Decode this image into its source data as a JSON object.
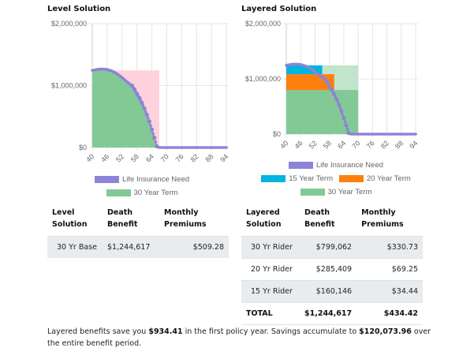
{
  "colors": {
    "need": "#8b84d7",
    "term15": "#00b4e0",
    "term20": "#ff7f0e",
    "term30": "#83c995",
    "term30_light": "#c2e4cb",
    "level_pink": "#ffd1dc",
    "grid": "#e5e5e5"
  },
  "chart_data": [
    {
      "type": "area",
      "title": "Level Solution",
      "xlabel": "Age",
      "ylabel": "",
      "x_ticks": [
        "40",
        "46",
        "52",
        "58",
        "64",
        "70",
        "76",
        "82",
        "88",
        "94"
      ],
      "y_ticks": [
        "$0",
        "$1,000,000",
        "$2,000,000"
      ],
      "xlim": [
        40,
        94
      ],
      "ylim": [
        0,
        2000000
      ],
      "grid": true,
      "legend": [
        "Life Insurance Need",
        "30 Year Term"
      ],
      "legend_position": "bottom",
      "series": [
        {
          "name": "Life Insurance Need",
          "kind": "line-points",
          "x": [
            40,
            42,
            44,
            46,
            48,
            50,
            52,
            54,
            56,
            57,
            58,
            59,
            60,
            61,
            62,
            63,
            64,
            65,
            66,
            67,
            70,
            94
          ],
          "values": [
            1244617,
            1262000,
            1268000,
            1260000,
            1235000,
            1190000,
            1130000,
            1060000,
            1000000,
            940000,
            870000,
            800000,
            720000,
            630000,
            530000,
            420000,
            290000,
            160000,
            20000,
            0,
            0,
            0
          ]
        },
        {
          "name": "30 Year Term",
          "kind": "level-band",
          "x_start": 40,
          "x_end": 67,
          "value": 1244617
        }
      ]
    },
    {
      "type": "area",
      "title": "Layered Solution",
      "xlabel": "Age",
      "ylabel": "",
      "x_ticks": [
        "40",
        "46",
        "52",
        "58",
        "64",
        "70",
        "76",
        "82",
        "88",
        "94"
      ],
      "y_ticks": [
        "$0",
        "$1,000,000",
        "$2,000,000"
      ],
      "xlim": [
        40,
        94
      ],
      "ylim": [
        0,
        2000000
      ],
      "grid": true,
      "legend": [
        "Life Insurance Need",
        "15 Year Term",
        "20 Year Term",
        "30 Year Term"
      ],
      "legend_position": "bottom",
      "series": [
        {
          "name": "Life Insurance Need",
          "kind": "line-points",
          "x": [
            40,
            42,
            44,
            46,
            48,
            50,
            52,
            54,
            56,
            57,
            58,
            59,
            60,
            61,
            62,
            63,
            64,
            65,
            66,
            67,
            70,
            94
          ],
          "values": [
            1244617,
            1262000,
            1268000,
            1260000,
            1235000,
            1190000,
            1130000,
            1060000,
            1000000,
            940000,
            870000,
            800000,
            720000,
            630000,
            530000,
            420000,
            290000,
            160000,
            20000,
            0,
            0,
            0
          ]
        },
        {
          "name": "30 Year Term",
          "kind": "band",
          "x_start": 40,
          "x_end": 70,
          "bottom": 0,
          "top": 799062
        },
        {
          "name": "20 Year Term",
          "kind": "band",
          "x_start": 40,
          "x_end": 60,
          "bottom": 799062,
          "top": 1084471
        },
        {
          "name": "15 Year Term",
          "kind": "band",
          "x_start": 40,
          "x_end": 55,
          "bottom": 1084471,
          "top": 1244617
        }
      ]
    }
  ],
  "level": {
    "title": "Level Solution",
    "legend": [
      "Life Insurance Need",
      "30 Year Term"
    ],
    "table": {
      "headers": [
        [
          "Level",
          "Solution"
        ],
        [
          "Death",
          "Benefit"
        ],
        [
          "Monthly",
          "Premiums"
        ]
      ],
      "rows": [
        [
          "30 Yr Base",
          "$1,244,617",
          "$509.28"
        ]
      ]
    }
  },
  "layered": {
    "title": "Layered Solution",
    "legend": [
      "Life Insurance Need",
      "15 Year Term",
      "20 Year Term",
      "30 Year Term"
    ],
    "table": {
      "headers": [
        [
          "Layered",
          "Solution"
        ],
        [
          "Death",
          "Benefit"
        ],
        [
          "Monthly",
          "Premiums"
        ]
      ],
      "rows": [
        [
          "30 Yr Rider",
          "$799,062",
          "$330.73"
        ],
        [
          "20 Yr Rider",
          "$285,409",
          "$69.25"
        ],
        [
          "15 Yr Rider",
          "$160,146",
          "$34.44"
        ]
      ],
      "total": [
        "TOTAL",
        "$1,244,617",
        "$434.42"
      ]
    }
  },
  "summary": {
    "p1": "Layered benefits save you ",
    "first_year_savings": "$934.41",
    "p2": " in the first policy year. Savings accumulate to ",
    "total_savings": "$120,073.96",
    "p3": " over the entire benefit period."
  }
}
